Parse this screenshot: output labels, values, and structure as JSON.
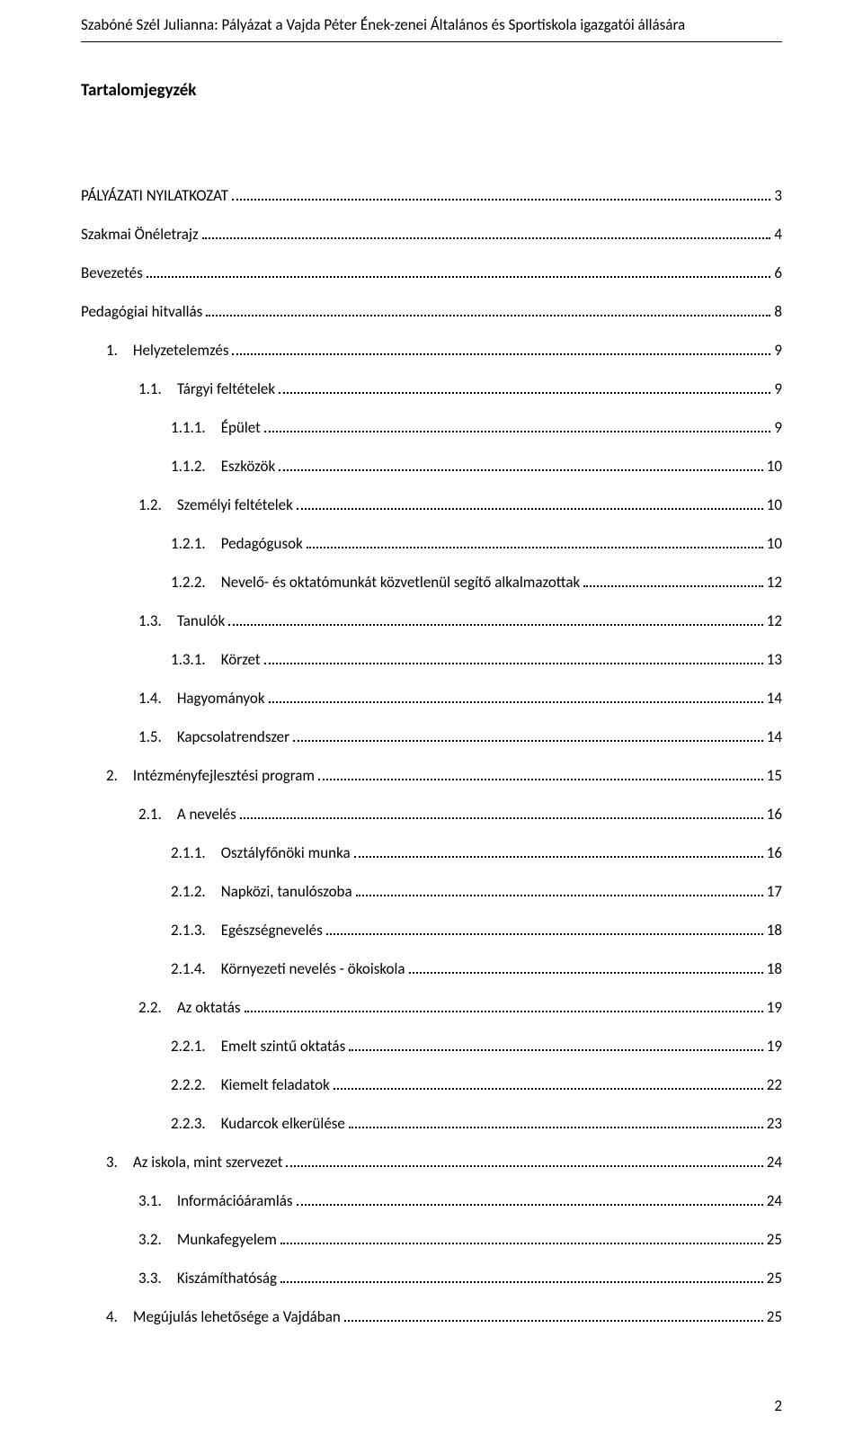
{
  "header": "Szabóné Szél Julianna: Pályázat a Vajda Péter Ének-zenei Általános és Sportiskola igazgatói állására",
  "toc_title": "Tartalomjegyzék",
  "page_number": "2",
  "entries": [
    {
      "label": "PÁLYÁZATI NYILATKOZAT",
      "page": "3",
      "indent": 0
    },
    {
      "label": "Szakmai Önéletrajz",
      "page": "4",
      "indent": 0
    },
    {
      "label": "Bevezetés",
      "page": "6",
      "indent": 0
    },
    {
      "label": "Pedagógiai hitvallás",
      "page": "8",
      "indent": 0
    },
    {
      "label": "1. Helyzetelemzés",
      "page": "9",
      "indent": 1
    },
    {
      "label": "1.1. Tárgyi feltételek",
      "page": "9",
      "indent": 2
    },
    {
      "label": "1.1.1. Épület",
      "page": "9",
      "indent": 3
    },
    {
      "label": "1.1.2. Eszközök",
      "page": "10",
      "indent": 3
    },
    {
      "label": "1.2. Személyi feltételek",
      "page": "10",
      "indent": 2
    },
    {
      "label": "1.2.1. Pedagógusok",
      "page": "10",
      "indent": 3
    },
    {
      "label": "1.2.2. Nevelő- és oktatómunkát közvetlenül segítő alkalmazottak",
      "page": "12",
      "indent": 3
    },
    {
      "label": "1.3. Tanulók",
      "page": "12",
      "indent": 2
    },
    {
      "label": "1.3.1. Körzet",
      "page": "13",
      "indent": 3
    },
    {
      "label": "1.4. Hagyományok",
      "page": "14",
      "indent": 2
    },
    {
      "label": "1.5. Kapcsolatrendszer",
      "page": "14",
      "indent": 2
    },
    {
      "label": "2. Intézményfejlesztési program",
      "page": "15",
      "indent": 1
    },
    {
      "label": "2.1. A nevelés",
      "page": "16",
      "indent": 2
    },
    {
      "label": "2.1.1. Osztályfőnöki munka",
      "page": "16",
      "indent": 3
    },
    {
      "label": "2.1.2. Napközi, tanulószoba",
      "page": "17",
      "indent": 3
    },
    {
      "label": "2.1.3. Egészségnevelés",
      "page": "18",
      "indent": 3
    },
    {
      "label": "2.1.4. Környezeti nevelés - ökoiskola",
      "page": "18",
      "indent": 3
    },
    {
      "label": "2.2. Az oktatás",
      "page": "19",
      "indent": 2
    },
    {
      "label": "2.2.1. Emelt szintű oktatás",
      "page": "19",
      "indent": 3
    },
    {
      "label": "2.2.2. Kiemelt feladatok",
      "page": "22",
      "indent": 3
    },
    {
      "label": "2.2.3. Kudarcok elkerülése",
      "page": "23",
      "indent": 3
    },
    {
      "label": "3. Az iskola, mint szervezet",
      "page": "24",
      "indent": 1
    },
    {
      "label": "3.1. Információáramlás",
      "page": "24",
      "indent": 2
    },
    {
      "label": "3.2. Munkafegyelem",
      "page": "25",
      "indent": 2
    },
    {
      "label": "3.3. Kiszámíthatóság",
      "page": "25",
      "indent": 2
    },
    {
      "label": "4. Megújulás lehetősége a Vajdában",
      "page": "25",
      "indent": 1
    }
  ]
}
